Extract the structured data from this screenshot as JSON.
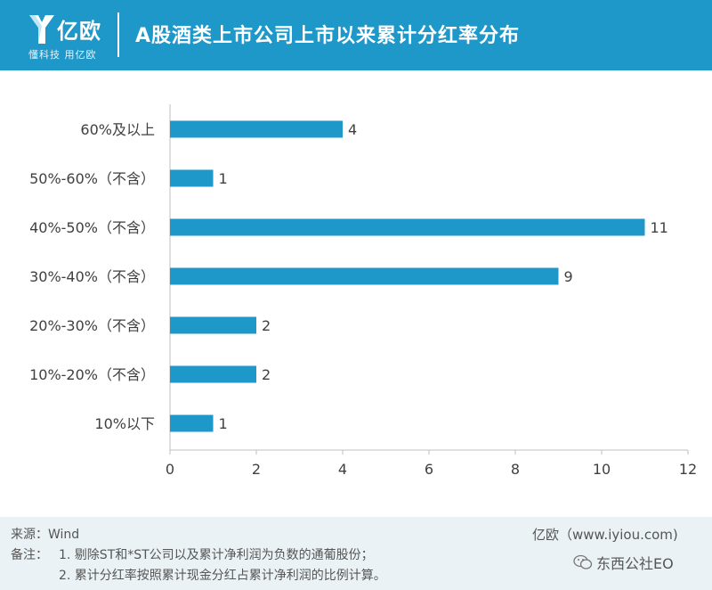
{
  "header": {
    "brand_name": "亿欧",
    "brand_slogan": "懂科技 用亿欧",
    "title": "A股酒类上市公司上市以来累计分红率分布",
    "background_color": "#1e97c9"
  },
  "chart_data": {
    "type": "bar",
    "orientation": "horizontal",
    "title": "A股酒类上市公司上市以来累计分红率分布",
    "categories": [
      "60%及以上",
      "50%-60%（不含）",
      "40%-50%（不含）",
      "30%-40%（不含）",
      "20%-30%（不含）",
      "10%-20%（不含）",
      "10%以下"
    ],
    "values": [
      4,
      1,
      11,
      9,
      2,
      2,
      1
    ],
    "xlim": [
      0,
      12
    ],
    "xticks": [
      0,
      2,
      4,
      6,
      8,
      10,
      12
    ],
    "xlabel": "",
    "ylabel": "",
    "grid": false,
    "legend": "none",
    "bar_color": "#1e97c9"
  },
  "footer": {
    "source": "来源：Wind",
    "note_label": "备注：",
    "note_1": "1. 剔除ST和*ST公司以及累计净利润为负数的通葡股份；",
    "note_2": "2. 累计分红率按照累计现金分红占累计净利润的比例计算。",
    "credit": "亿欧（www.iyiou.com)",
    "watermark": "东西公社EO"
  }
}
